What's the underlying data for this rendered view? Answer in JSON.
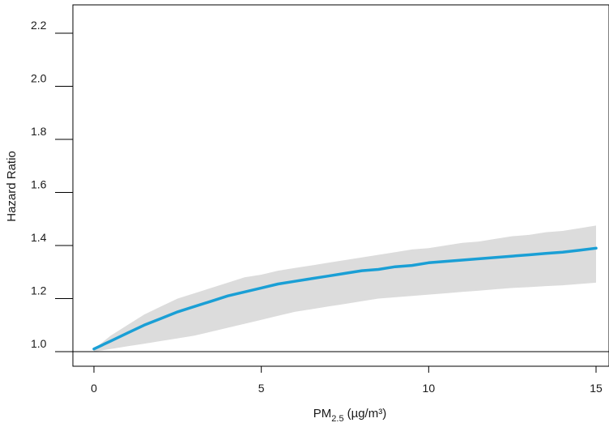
{
  "chart_data": {
    "type": "line",
    "title": "",
    "xlabel": {
      "main": "PM",
      "subscript": "2.5",
      "unit": "(µg/m³)"
    },
    "ylabel": "Hazard Ratio",
    "xlim": [
      -0.6,
      15.2
    ],
    "ylim": [
      0.95,
      2.3
    ],
    "x_ticks": [
      0,
      5,
      10,
      15
    ],
    "x_tick_labels": [
      "0",
      "5",
      "10",
      "15"
    ],
    "y_ticks": [
      1.0,
      1.2,
      1.4,
      1.6,
      1.8,
      2.0,
      2.2
    ],
    "y_tick_labels": [
      "1.0",
      "1.2",
      "1.4",
      "1.6",
      "1.8",
      "2.0",
      "2.2"
    ],
    "reference_line_y": 1.0,
    "grid": false,
    "legend": "none",
    "series": [
      {
        "x": [
          0,
          0.5,
          1,
          1.5,
          2,
          2.5,
          3,
          3.5,
          4,
          4.5,
          5,
          5.5,
          6,
          6.5,
          7,
          7.5,
          8,
          8.5,
          9,
          9.5,
          10,
          10.5,
          11,
          11.5,
          12,
          12.5,
          13,
          13.5,
          14,
          14.5,
          15
        ],
        "y": [
          1.01,
          1.04,
          1.07,
          1.1,
          1.125,
          1.15,
          1.17,
          1.19,
          1.21,
          1.225,
          1.24,
          1.255,
          1.265,
          1.275,
          1.285,
          1.295,
          1.305,
          1.31,
          1.32,
          1.325,
          1.335,
          1.34,
          1.345,
          1.35,
          1.355,
          1.36,
          1.365,
          1.37,
          1.375,
          1.382,
          1.39
        ],
        "lower": [
          1.0,
          1.01,
          1.02,
          1.03,
          1.04,
          1.05,
          1.06,
          1.075,
          1.09,
          1.105,
          1.12,
          1.135,
          1.15,
          1.16,
          1.17,
          1.18,
          1.19,
          1.2,
          1.205,
          1.21,
          1.215,
          1.22,
          1.225,
          1.23,
          1.235,
          1.24,
          1.243,
          1.247,
          1.25,
          1.255,
          1.26
        ],
        "upper": [
          1.01,
          1.06,
          1.1,
          1.14,
          1.17,
          1.2,
          1.22,
          1.24,
          1.26,
          1.28,
          1.29,
          1.305,
          1.315,
          1.325,
          1.335,
          1.345,
          1.355,
          1.365,
          1.375,
          1.385,
          1.39,
          1.4,
          1.41,
          1.415,
          1.425,
          1.435,
          1.44,
          1.45,
          1.455,
          1.465,
          1.475
        ]
      }
    ],
    "colors": {
      "line": "#1a9fd5",
      "band": "#dcdcdc",
      "axis": "#000000",
      "text": "#1a1a1a"
    }
  }
}
